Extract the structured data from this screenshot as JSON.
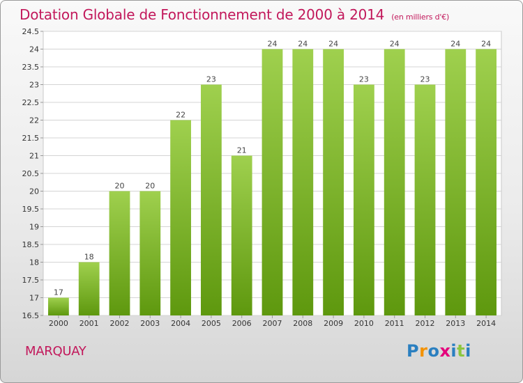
{
  "title": "Dotation Globale de Fonctionnement de 2000 à 2014",
  "subtitle": "(en milliers d'€)",
  "commune": "MARQUAY",
  "logo": {
    "letters": [
      "P",
      "r",
      "o",
      "x",
      "i",
      "t",
      "i"
    ],
    "colors": [
      "#2a7fc0",
      "#f39200",
      "#2a7fc0",
      "#e4007c",
      "#2a7fc0",
      "#8cc63f",
      "#2a7fc0"
    ]
  },
  "colors": {
    "bar_top": "#9fd04e",
    "bar_bottom": "#5e980e",
    "title": "#c2185b"
  },
  "chart_data": {
    "type": "bar",
    "categories": [
      "2000",
      "2001",
      "2002",
      "2003",
      "2004",
      "2005",
      "2006",
      "2007",
      "2008",
      "2009",
      "2010",
      "2011",
      "2012",
      "2013",
      "2014"
    ],
    "values": [
      17,
      18,
      20,
      20,
      22,
      23,
      21,
      24,
      24,
      24,
      23,
      24,
      23,
      24,
      24
    ],
    "data_labels": [
      "17",
      "18",
      "20",
      "20",
      "22",
      "23",
      "21",
      "24",
      "24",
      "24",
      "23",
      "24",
      "23",
      "24",
      "24"
    ],
    "yticks": [
      "16.5",
      "17",
      "17.5",
      "18",
      "18.5",
      "19",
      "19.5",
      "20",
      "20.5",
      "21",
      "21.5",
      "22",
      "22.5",
      "23",
      "23.5",
      "24",
      "24.5"
    ],
    "ylim": [
      16.5,
      24.5
    ],
    "grid": true,
    "xlabel": "",
    "ylabel": ""
  }
}
